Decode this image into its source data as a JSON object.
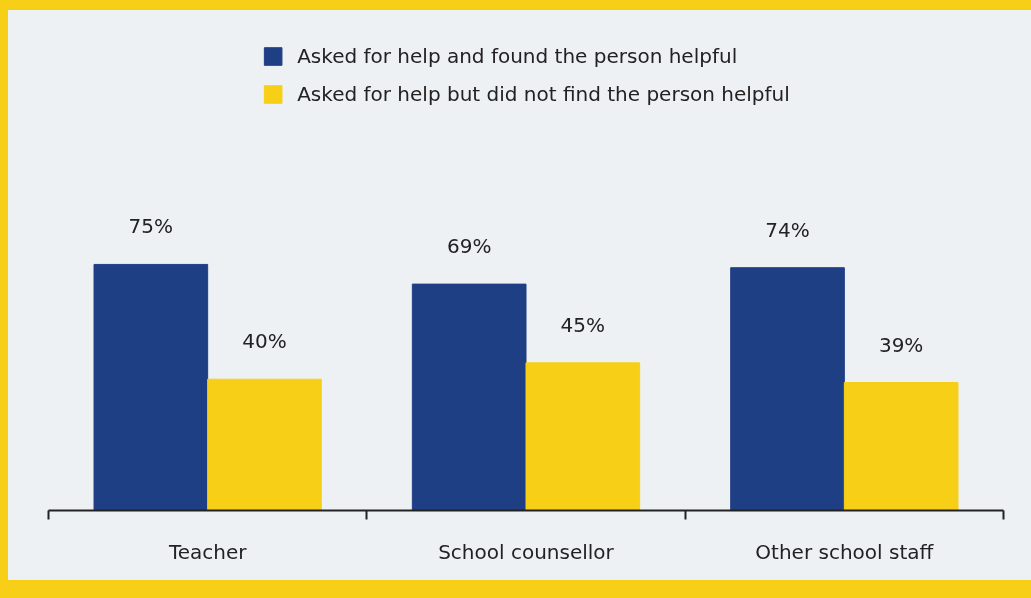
{
  "chart_data": {
    "type": "bar",
    "categories": [
      "Teacher",
      "School counsellor",
      "Other school staff"
    ],
    "series": [
      {
        "name": "Asked for help and found the person helpful",
        "color": "#1f3f85",
        "values": [
          75,
          69,
          74
        ],
        "value_labels": [
          "75%",
          "69%",
          "74%"
        ]
      },
      {
        "name": "Asked for help but did not find the person helpful",
        "color": "#f7cf17",
        "values": [
          40,
          45,
          39
        ],
        "value_labels": [
          "40%",
          "45%",
          "39%"
        ]
      }
    ],
    "legend": "top",
    "grid": false,
    "tick_labels": "x"
  }
}
